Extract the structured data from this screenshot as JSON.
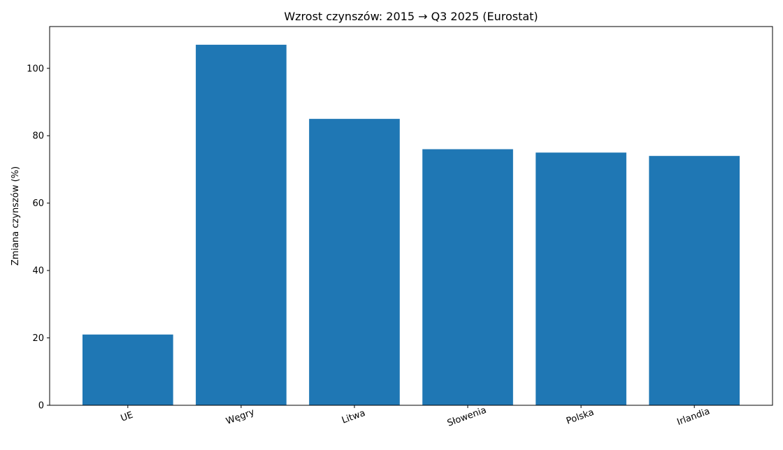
{
  "chart_data": {
    "type": "bar",
    "title": "Wzrost czynszów: 2015 → Q3 2025 (Eurostat)",
    "y_label": "Zmiana czynszów (%)",
    "categories": [
      "UE",
      "Węgry",
      "Litwa",
      "Słowenia",
      "Polska",
      "Irlandia"
    ],
    "values": [
      21,
      107,
      85,
      76,
      75,
      74
    ],
    "color": "#1f77b4",
    "ylim": [
      0,
      112.4
    ],
    "yticks": [
      0,
      20,
      40,
      60,
      80,
      100
    ],
    "grid": false
  }
}
